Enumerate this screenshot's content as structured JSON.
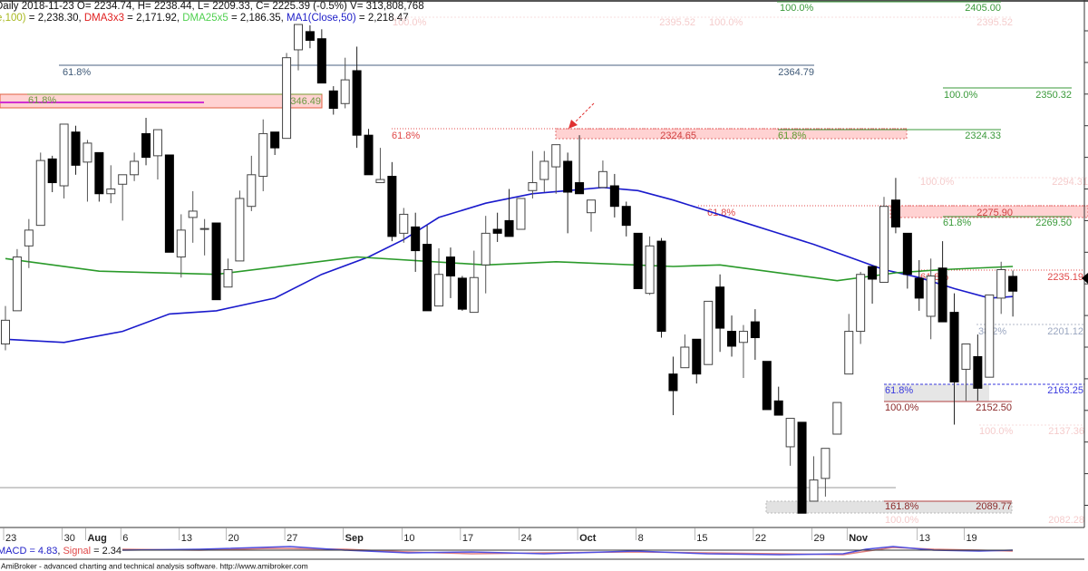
{
  "header": {
    "line1": "Daily 2018-11-23 O= 2234.74, H= 2238.44, L= 2209.33, C= 2225.39 (-0.5%) V= 313,808,768",
    "line2": [
      {
        "text": "e,100)",
        "color": "#a8b820"
      },
      {
        "text": " = 2,238.30, ",
        "color": "#111111"
      },
      {
        "text": "DMA3x3",
        "color": "#e02020"
      },
      {
        "text": " = 2,171.92, ",
        "color": "#111111"
      },
      {
        "text": "DMA25x5",
        "color": "#50d050"
      },
      {
        "text": " = 2,186.35, ",
        "color": "#111111"
      },
      {
        "text": "MA1(Close,50)",
        "color": "#2020c8"
      },
      {
        "text": " = 2,218.47",
        "color": "#111111"
      }
    ]
  },
  "fib_labels": {
    "top_pct": "100.0%",
    "top_val": "2405.00",
    "faint1_pct": "100.0%",
    "faint1_val": "2395.52",
    "faint2_pct": "100.0%",
    "faint2_val": "2395.52",
    "slate_pct": "61.8%",
    "slate_val": "2364.79",
    "band1_pct": "61.8%",
    "band1_val": "2346.49",
    "g2_pct": "100.0%",
    "g2_val": "2350.32",
    "red1_pct": "61.8%",
    "red1_val": "2324.65",
    "g3_pct": "61.8%",
    "g3_val": "2324.33",
    "faint3_pct": "100.0%",
    "faint3_val": "2294.31",
    "red2_pct": "61.8%",
    "red2_val": "2275.90",
    "g4_pct": "61.8%",
    "g4_val": "2269.50",
    "red3_pct": "61.8%",
    "red3_val": "2235.19",
    "gray_pct": "38.2%",
    "gray_val": "2201.12",
    "blue_pct": "61.8%",
    "blue_val": "2163.25",
    "dred_pct": "100.0%",
    "dred_val": "2152.50",
    "faint4_pct": "100.0%",
    "faint4_val": "2137.36",
    "ext_pct": "161.8%",
    "ext_val": "2089.77",
    "faint5_pct": "100.0%",
    "faint5_val": "2082.28"
  },
  "colors": {
    "up_candle": "#ffffff",
    "down_candle": "#000000",
    "ma50": "#1a1acc",
    "ma100": "#2a9a2a",
    "fib_green": "#3a9a3a",
    "fib_red": "#e04848",
    "fib_band": "#ffd2d2",
    "fib_faint": "#f7cfcf"
  },
  "macd": {
    "macd_label": "MACD = 4.83",
    "sep": ", ",
    "signal_label": "Signal",
    "signal_value": " = 2.34"
  },
  "footer": "AmiBroker - advanced charting and technical analysis software. http://www.amibroker.com",
  "chart_data": {
    "type": "candlestick",
    "title": "Daily 2018-11-23",
    "last_bar": {
      "date": "2018-11-23",
      "open": 2234.74,
      "high": 2238.44,
      "low": 2209.33,
      "close": 2225.39,
      "change_pct": -0.5,
      "volume": 313808768
    },
    "ylim": [
      2082,
      2408
    ],
    "x_ticks": [
      {
        "label": "23",
        "bar": 0
      },
      {
        "label": "30",
        "bar": 5
      },
      {
        "label": "Aug",
        "bar": 7,
        "month": true
      },
      {
        "label": "6",
        "bar": 10
      },
      {
        "label": "13",
        "bar": 15
      },
      {
        "label": "20",
        "bar": 19
      },
      {
        "label": "27",
        "bar": 24
      },
      {
        "label": "Sep",
        "bar": 29,
        "month": true
      },
      {
        "label": "10",
        "bar": 34
      },
      {
        "label": "17",
        "bar": 39
      },
      {
        "label": "24",
        "bar": 44
      },
      {
        "label": "Oct",
        "bar": 49,
        "month": true
      },
      {
        "label": "8",
        "bar": 54
      },
      {
        "label": "15",
        "bar": 59
      },
      {
        "label": "22",
        "bar": 64
      },
      {
        "label": "29",
        "bar": 69
      },
      {
        "label": "Nov",
        "bar": 72,
        "month": true
      },
      {
        "label": "13",
        "bar": 78
      },
      {
        "label": "19",
        "bar": 82
      }
    ],
    "ohlc": [
      [
        2192,
        2216,
        2188,
        2207
      ],
      [
        2213,
        2252,
        2213,
        2247
      ],
      [
        2254,
        2271,
        2240,
        2264
      ],
      [
        2267,
        2313,
        2267,
        2308
      ],
      [
        2309,
        2311,
        2288,
        2294
      ],
      [
        2292,
        2331,
        2284,
        2331
      ],
      [
        2326,
        2330,
        2299,
        2305
      ],
      [
        2307,
        2321,
        2282,
        2319
      ],
      [
        2313,
        2313,
        2282,
        2287
      ],
      [
        2287,
        2305,
        2281,
        2290
      ],
      [
        2293,
        2299,
        2270,
        2299
      ],
      [
        2299,
        2313,
        2295,
        2307.5
      ],
      [
        2325,
        2335,
        2305,
        2310
      ],
      [
        2311,
        2327.5,
        2296,
        2327.5
      ],
      [
        2311.5,
        2311.5,
        2250,
        2250
      ],
      [
        2247,
        2274,
        2234,
        2264
      ],
      [
        2272,
        2288.6,
        2256,
        2276
      ],
      [
        2265,
        2271,
        2248,
        2265
      ],
      [
        2268.5,
        2268.5,
        2220,
        2220
      ],
      [
        2228,
        2246,
        2228,
        2239
      ],
      [
        2244.5,
        2289,
        2244.5,
        2284
      ],
      [
        2279,
        2311,
        2276,
        2299
      ],
      [
        2298,
        2334,
        2288.6,
        2325
      ],
      [
        2326,
        2326,
        2311.5,
        2316
      ],
      [
        2322,
        2376,
        2322,
        2373
      ],
      [
        2378,
        2394,
        2365,
        2394
      ],
      [
        2389.5,
        2393.5,
        2379,
        2384
      ],
      [
        2385,
        2391,
        2357,
        2357
      ],
      [
        2352,
        2355,
        2337,
        2341
      ],
      [
        2344,
        2373,
        2341,
        2359
      ],
      [
        2364.8,
        2380,
        2316,
        2324
      ],
      [
        2324,
        2328,
        2299,
        2299
      ],
      [
        2294,
        2316,
        2294,
        2296
      ],
      [
        2298,
        2307,
        2257,
        2260
      ],
      [
        2262,
        2278,
        2256,
        2274
      ],
      [
        2266,
        2275,
        2237.6,
        2251
      ],
      [
        2255,
        2267,
        2213,
        2213
      ],
      [
        2216,
        2252.5,
        2216,
        2236
      ],
      [
        2247,
        2253,
        2221,
        2235
      ],
      [
        2233.6,
        2235,
        2213,
        2214
      ],
      [
        2212,
        2251,
        2212,
        2234
      ],
      [
        2242,
        2273,
        2224,
        2262
      ],
      [
        2264.5,
        2275,
        2256.5,
        2262
      ],
      [
        2270,
        2290,
        2260,
        2260
      ],
      [
        2264.5,
        2284,
        2264.5,
        2284
      ],
      [
        2289,
        2314,
        2284,
        2294
      ],
      [
        2296,
        2314,
        2288,
        2307.5
      ],
      [
        2304,
        2318,
        2287,
        2318
      ],
      [
        2307.5,
        2313,
        2262,
        2288
      ],
      [
        2294,
        2324,
        2287,
        2287
      ],
      [
        2275,
        2283,
        2263,
        2283
      ],
      [
        2291,
        2308,
        2291,
        2301
      ],
      [
        2292,
        2299.5,
        2272,
        2279
      ],
      [
        2279,
        2282,
        2260,
        2267
      ],
      [
        2262,
        2262,
        2227,
        2227
      ],
      [
        2224,
        2260,
        2223,
        2254
      ],
      [
        2257,
        2259,
        2196,
        2200
      ],
      [
        2173,
        2184,
        2147,
        2162.5
      ],
      [
        2177,
        2198,
        2177,
        2190
      ],
      [
        2195,
        2195,
        2167,
        2173
      ],
      [
        2179,
        2219,
        2179,
        2219
      ],
      [
        2228,
        2236,
        2187,
        2202
      ],
      [
        2200,
        2210,
        2184,
        2190.6
      ],
      [
        2193,
        2204,
        2170.5,
        2200
      ],
      [
        2206,
        2214,
        2182,
        2196
      ],
      [
        2181,
        2181,
        2150.5,
        2150.5
      ],
      [
        2156,
        2165,
        2147,
        2147
      ],
      [
        2127,
        2145,
        2115,
        2145
      ],
      [
        2142.5,
        2142.5,
        2085,
        2085
      ],
      [
        2092.6,
        2121,
        2092.6,
        2106
      ],
      [
        2107,
        2126,
        2095.5,
        2126
      ],
      [
        2135,
        2155,
        2135,
        2155
      ],
      [
        2173,
        2211,
        2173,
        2200
      ],
      [
        2200,
        2237.6,
        2192,
        2236
      ],
      [
        2241,
        2241,
        2217.5,
        2233
      ],
      [
        2231,
        2285,
        2231,
        2279
      ],
      [
        2283,
        2297,
        2262,
        2266
      ],
      [
        2262,
        2262,
        2227,
        2236
      ],
      [
        2233.6,
        2245,
        2213,
        2221
      ],
      [
        2209.5,
        2246,
        2195,
        2235
      ],
      [
        2240,
        2257,
        2206,
        2206
      ],
      [
        2212,
        2224,
        2141,
        2168
      ],
      [
        2176,
        2192,
        2156,
        2192
      ],
      [
        2184,
        2198,
        2156,
        2164
      ],
      [
        2171,
        2223,
        2171,
        2223
      ],
      [
        2221,
        2244,
        2211,
        2239
      ],
      [
        2234.74,
        2238.44,
        2209.33,
        2225.39
      ]
    ],
    "series": [
      {
        "name": "MA1(Close,50)",
        "color": "#1a1acc",
        "points": [
          [
            0,
            2195
          ],
          [
            5,
            2193
          ],
          [
            10,
            2200
          ],
          [
            14,
            2211
          ],
          [
            18,
            2213
          ],
          [
            23,
            2221
          ],
          [
            27,
            2236
          ],
          [
            31,
            2247
          ],
          [
            34,
            2258
          ],
          [
            37,
            2272
          ],
          [
            41,
            2281
          ],
          [
            45,
            2287
          ],
          [
            48,
            2289
          ],
          [
            51,
            2291
          ],
          [
            54,
            2289
          ],
          [
            57,
            2283
          ],
          [
            60,
            2276
          ],
          [
            63,
            2269
          ],
          [
            66,
            2262
          ],
          [
            69,
            2255
          ],
          [
            72,
            2247
          ],
          [
            75,
            2239
          ],
          [
            78,
            2234
          ],
          [
            81,
            2227
          ],
          [
            84,
            2221
          ],
          [
            86,
            2222
          ]
        ]
      },
      {
        "name": "e,100)",
        "color": "#2a9a2a",
        "points": [
          [
            0,
            2246
          ],
          [
            8,
            2238
          ],
          [
            18,
            2236
          ],
          [
            30,
            2247
          ],
          [
            41,
            2242
          ],
          [
            47,
            2244
          ],
          [
            57,
            2241
          ],
          [
            61,
            2242
          ],
          [
            63,
            2240
          ],
          [
            69,
            2234
          ],
          [
            71,
            2232
          ],
          [
            74,
            2235
          ],
          [
            76,
            2237
          ],
          [
            80,
            2239
          ],
          [
            86,
            2241
          ]
        ]
      }
    ]
  }
}
